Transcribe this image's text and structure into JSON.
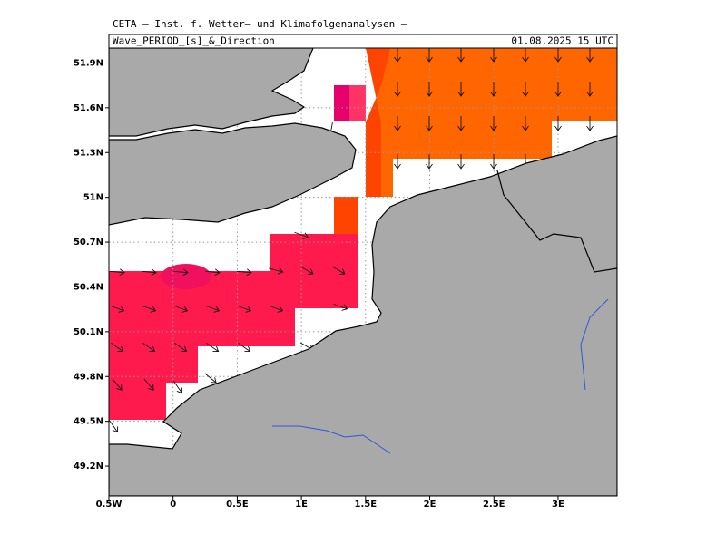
{
  "header": {
    "institute": "CETA — Inst. f. Wetter— und Klimafolgenanalysen —",
    "field": "Wave_PERIOD_[s]_&_Direction",
    "valid_time": "01.08.2025 15 UTC"
  },
  "map": {
    "lon_range": [
      -0.5,
      3.46
    ],
    "lat_range": [
      49.0,
      52.0
    ],
    "lon_ticks": [
      {
        "value": -0.5,
        "label": "0.5W"
      },
      0,
      {
        "value": 0.5,
        "label": "0.5E"
      },
      {
        "value": 1,
        "label": "1E"
      },
      {
        "value": 1.5,
        "label": "1.5E"
      },
      {
        "value": 2,
        "label": "2E"
      },
      {
        "value": 2.5,
        "label": "2.5E"
      },
      {
        "value": 3,
        "label": "3E"
      }
    ],
    "lat_ticks": [
      {
        "value": 49.2,
        "label": "49.2N"
      },
      {
        "value": 49.5,
        "label": "49.5N"
      },
      {
        "value": 49.8,
        "label": "49.8N"
      },
      {
        "value": 50.1,
        "label": "50.1N"
      },
      {
        "value": 50.4,
        "label": "50.4N"
      },
      {
        "value": 50.7,
        "label": "50.7N"
      },
      {
        "value": 51,
        "label": "51N"
      },
      {
        "value": 51.3,
        "label": "51.3N"
      },
      {
        "value": 51.6,
        "label": "51.6N"
      },
      {
        "value": 51.9,
        "label": "51.9N"
      }
    ]
  }
}
